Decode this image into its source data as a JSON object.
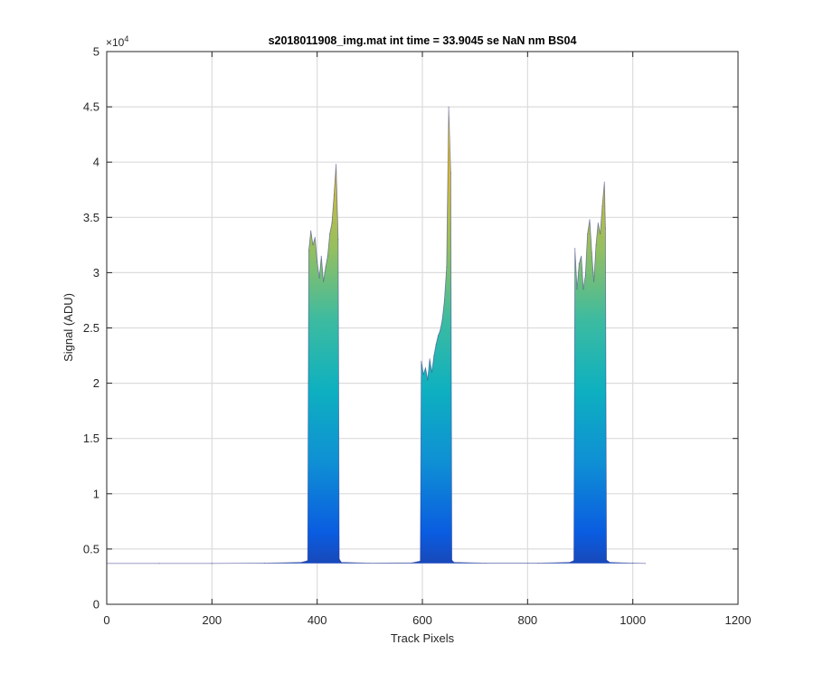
{
  "chart_data": {
    "type": "area",
    "title": "s2018011908_img.mat int time = 33.9045 se  NaN nm BS04",
    "xlabel": "Track Pixels",
    "ylabel": "Signal (ADU)",
    "xlim": [
      0,
      1200
    ],
    "ylim": [
      0,
      50000
    ],
    "x_ticks": [
      0,
      200,
      400,
      600,
      800,
      1000,
      1200
    ],
    "x_tick_labels": [
      "0",
      "200",
      "400",
      "600",
      "800",
      "1000",
      "1200"
    ],
    "y_ticks": [
      0,
      5000,
      10000,
      15000,
      20000,
      25000,
      30000,
      35000,
      40000,
      45000,
      50000
    ],
    "y_tick_labels": [
      "0",
      "0.5",
      "1",
      "1.5",
      "2",
      "2.5",
      "3",
      "3.5",
      "4",
      "4.5",
      "5"
    ],
    "y_exponent_base": "×10",
    "y_exponent_power": "4",
    "grid": true,
    "colormap": [
      "#2b2f86",
      "#0a5ce0",
      "#0f90d4",
      "#0eb0c0",
      "#3dbba0",
      "#95bf60",
      "#d2b93a",
      "#f8de1a"
    ],
    "series": [
      {
        "values": [
          [
            0,
            3700
          ],
          [
            100,
            3700
          ],
          [
            200,
            3700
          ],
          [
            300,
            3720
          ],
          [
            370,
            3800
          ],
          [
            382,
            3950
          ],
          [
            384,
            32000
          ],
          [
            388,
            33800
          ],
          [
            392,
            32500
          ],
          [
            396,
            33200
          ],
          [
            400,
            31000
          ],
          [
            404,
            29500
          ],
          [
            408,
            31500
          ],
          [
            412,
            29200
          ],
          [
            416,
            30500
          ],
          [
            420,
            31500
          ],
          [
            424,
            33500
          ],
          [
            428,
            34500
          ],
          [
            432,
            37000
          ],
          [
            436,
            39800
          ],
          [
            440,
            33000
          ],
          [
            442,
            4100
          ],
          [
            446,
            3800
          ],
          [
            500,
            3720
          ],
          [
            580,
            3750
          ],
          [
            596,
            3900
          ],
          [
            598,
            22000
          ],
          [
            602,
            20800
          ],
          [
            606,
            21400
          ],
          [
            610,
            20300
          ],
          [
            614,
            22200
          ],
          [
            618,
            21000
          ],
          [
            622,
            22500
          ],
          [
            626,
            23500
          ],
          [
            630,
            24300
          ],
          [
            634,
            24800
          ],
          [
            638,
            25800
          ],
          [
            642,
            27500
          ],
          [
            646,
            30500
          ],
          [
            650,
            45000
          ],
          [
            654,
            39000
          ],
          [
            656,
            4000
          ],
          [
            660,
            3800
          ],
          [
            720,
            3720
          ],
          [
            820,
            3720
          ],
          [
            880,
            3800
          ],
          [
            888,
            3950
          ],
          [
            890,
            32200
          ],
          [
            894,
            28500
          ],
          [
            898,
            30800
          ],
          [
            902,
            31500
          ],
          [
            906,
            28500
          ],
          [
            910,
            29800
          ],
          [
            914,
            33500
          ],
          [
            918,
            34800
          ],
          [
            922,
            31800
          ],
          [
            926,
            29200
          ],
          [
            930,
            32500
          ],
          [
            934,
            34500
          ],
          [
            938,
            33500
          ],
          [
            942,
            36000
          ],
          [
            946,
            38200
          ],
          [
            948,
            34000
          ],
          [
            950,
            4000
          ],
          [
            956,
            3800
          ],
          [
            1000,
            3720
          ],
          [
            1024,
            3700
          ]
        ]
      }
    ]
  }
}
